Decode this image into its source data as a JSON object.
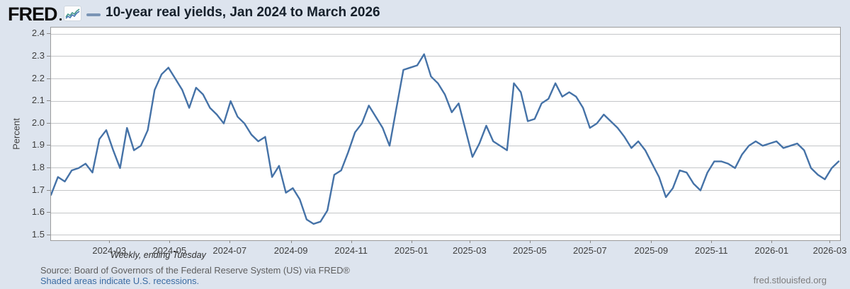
{
  "header": {
    "logo": "FRED",
    "title": "10-year real yields, Jan 2024 to March 2026"
  },
  "chart": {
    "ylabel": "Percent",
    "note": "Weekly, ending Tuesday"
  },
  "footer": {
    "source": "Source: Board of Governors of the Federal Reserve System (US) via FRED®",
    "recession_link": "Shaded areas indicate U.S. recessions.",
    "site": "fred.stlouisfed.org"
  },
  "colors": {
    "background": "#dde4ee",
    "plot_background": "#ffffff",
    "line": "#4572a7",
    "legend_dash": "#7a94b5",
    "gridline": "#c4c6c8",
    "link": "#3a6ca3",
    "logo_spark_blue": "#4576b2",
    "logo_spark_teal": "#45998c"
  },
  "chart_data": {
    "type": "line",
    "title": "10-year real yields, Jan 2024 to March 2026",
    "xlabel": "",
    "ylabel": "Percent",
    "ylim": [
      1.5,
      2.4
    ],
    "y_ticks": [
      1.5,
      1.6,
      1.7,
      1.8,
      1.9,
      2.0,
      2.1,
      2.2,
      2.3,
      2.4
    ],
    "x_tick_labels": [
      "2024-03",
      "2024-05",
      "2024-07",
      "2024-09",
      "2024-11",
      "2025-01",
      "2025-03",
      "2025-05",
      "2025-07",
      "2025-09",
      "2025-11",
      "2026-01",
      "2026-03"
    ],
    "grid": "horizontal",
    "legend_position": "title-left-dash",
    "frequency_note": "Weekly, ending Tuesday",
    "series": [
      {
        "name": "10-year real yields",
        "color": "#4572a7",
        "start_date": "2024-01-02",
        "interval_days": 7,
        "values": [
          1.68,
          1.76,
          1.74,
          1.79,
          1.8,
          1.82,
          1.78,
          1.93,
          1.97,
          1.88,
          1.8,
          1.98,
          1.88,
          1.9,
          1.97,
          2.15,
          2.22,
          2.25,
          2.2,
          2.15,
          2.07,
          2.16,
          2.13,
          2.07,
          2.04,
          2.0,
          2.1,
          2.03,
          2.0,
          1.95,
          1.92,
          1.94,
          1.76,
          1.81,
          1.69,
          1.71,
          1.66,
          1.57,
          1.55,
          1.56,
          1.61,
          1.77,
          1.79,
          1.87,
          1.96,
          2.0,
          2.08,
          2.03,
          1.98,
          1.9,
          2.07,
          2.24,
          2.25,
          2.26,
          2.31,
          2.21,
          2.18,
          2.13,
          2.05,
          2.09,
          1.97,
          1.85,
          1.91,
          1.99,
          1.92,
          1.9,
          1.88,
          2.18,
          2.14,
          2.01,
          2.02,
          2.09,
          2.11,
          2.18,
          2.12,
          2.14,
          2.12,
          2.07,
          1.98,
          2.0,
          2.04,
          2.01,
          1.98,
          1.94,
          1.89,
          1.92,
          1.88,
          1.82,
          1.76,
          1.67,
          1.71,
          1.79,
          1.78,
          1.73,
          1.7,
          1.78,
          1.83,
          1.83,
          1.82,
          1.8,
          1.86,
          1.9,
          1.92,
          1.9,
          1.91,
          1.92,
          1.89,
          1.9,
          1.91,
          1.88,
          1.8,
          1.77,
          1.75,
          1.8,
          1.83
        ]
      }
    ]
  }
}
